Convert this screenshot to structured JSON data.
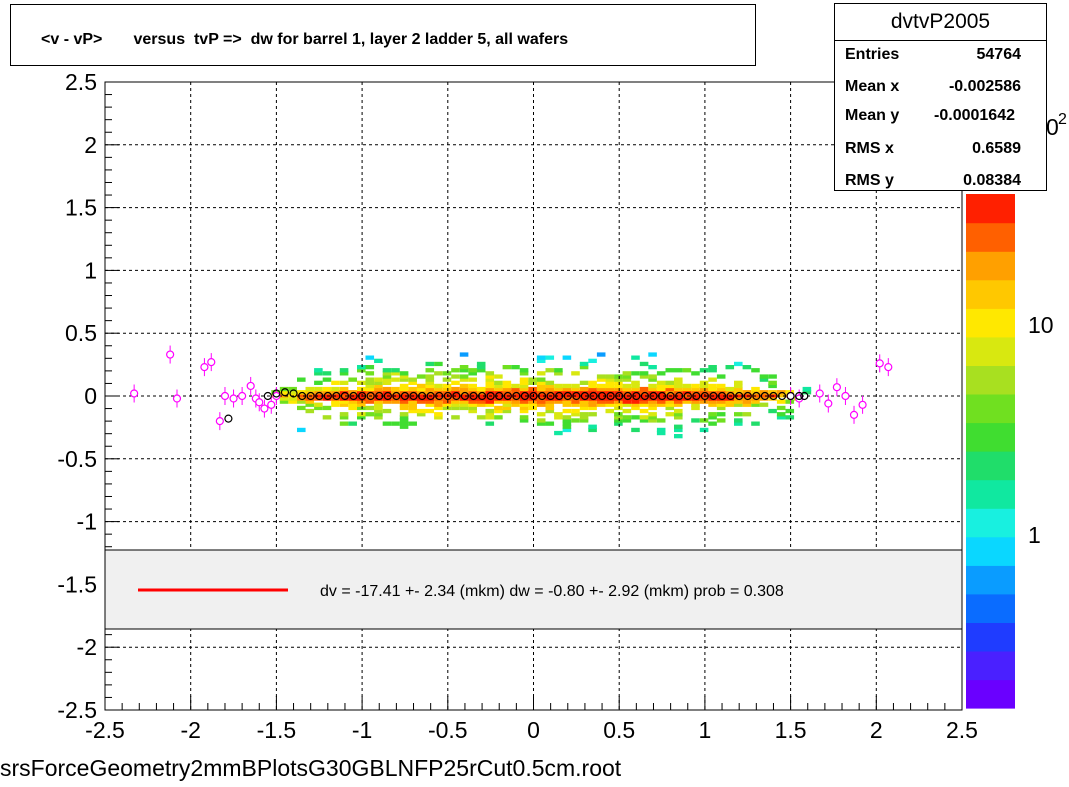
{
  "header": {
    "title": "<v - vP>       versus  tvP =>  dw for barrel 1, layer 2 ladder 5, all wafers"
  },
  "stats": {
    "name": "dvtvP2005",
    "rows": [
      {
        "label": "Entries",
        "value": "54764"
      },
      {
        "label": "Mean x",
        "value": "-0.002586"
      },
      {
        "label": "Mean y",
        "value": "-0.0001642"
      },
      {
        "label": "RMS x",
        "value": "0.6589"
      },
      {
        "label": "RMS y",
        "value": "0.08384"
      }
    ]
  },
  "fit_label": "dv =  -17.41 +-  2.34 (mkm) dw =   -0.80 +-  2.92 (mkm) prob = 0.308",
  "footer": "srsForceGeometry2mmBPlotsG30GBLNFP25rCut0.5cm.root",
  "chart_data": {
    "type": "heatmap",
    "title": "<v - vP>       versus  tvP =>  dw for barrel 1, layer 2 ladder 5, all wafers",
    "xlim": [
      -2.5,
      2.5
    ],
    "ylim": [
      -2.5,
      2.5
    ],
    "x_ticks": [
      "-2.5",
      "-2",
      "-1.5",
      "-1",
      "-0.5",
      "0",
      "0.5",
      "1",
      "1.5",
      "2",
      "2.5"
    ],
    "y_ticks": [
      "2.5",
      "2",
      "1.5",
      "1",
      "0.5",
      "0",
      "-0.5",
      "-1",
      "-1.5",
      "-2",
      "-2.5"
    ],
    "grid": true,
    "colorbar": {
      "scale": "log",
      "labels": [
        "10",
        "1"
      ],
      "partial_label": "2"
    },
    "band": {
      "x_range": [
        -1.5,
        1.5
      ],
      "y_half_width": 0.45,
      "core_y_half_width": 0.05
    },
    "profile_black": {
      "x": [
        -1.78,
        -1.55,
        -1.5,
        -1.45,
        -1.4,
        -1.35,
        -1.3,
        -1.25,
        -1.2,
        -1.15,
        -1.1,
        -1.05,
        -1.0,
        -0.95,
        -0.9,
        -0.85,
        -0.8,
        -0.75,
        -0.7,
        -0.65,
        -0.6,
        -0.55,
        -0.5,
        -0.45,
        -0.4,
        -0.35,
        -0.3,
        -0.25,
        -0.2,
        -0.15,
        -0.1,
        -0.05,
        0.0,
        0.05,
        0.1,
        0.15,
        0.2,
        0.25,
        0.3,
        0.35,
        0.4,
        0.45,
        0.5,
        0.55,
        0.6,
        0.65,
        0.7,
        0.75,
        0.8,
        0.85,
        0.9,
        0.95,
        1.0,
        1.05,
        1.1,
        1.15,
        1.2,
        1.25,
        1.3,
        1.35,
        1.4,
        1.45,
        1.5,
        1.55,
        1.58
      ],
      "y": [
        -0.18,
        0.0,
        0.02,
        0.03,
        0.02,
        0.0,
        0.0,
        0.0,
        0.0,
        0.0,
        0.0,
        0.0,
        0.0,
        0.0,
        0.0,
        0.0,
        0.0,
        0.0,
        0.0,
        0.0,
        0.0,
        0.0,
        0.0,
        0.0,
        0.0,
        0.0,
        0.0,
        0.0,
        0.0,
        0.0,
        0.0,
        0.0,
        0.0,
        0.0,
        0.0,
        0.0,
        0.0,
        0.0,
        0.0,
        0.0,
        0.0,
        0.0,
        0.0,
        0.0,
        0.0,
        0.0,
        0.0,
        0.0,
        0.0,
        0.0,
        0.0,
        0.0,
        0.0,
        0.0,
        0.0,
        0.0,
        0.0,
        0.0,
        0.0,
        0.0,
        0.0,
        0.0,
        0.0,
        0.0,
        0.0
      ]
    },
    "profile_magenta": {
      "x": [
        -2.33,
        -2.12,
        -2.08,
        -1.92,
        -1.88,
        -1.83,
        -1.8,
        -1.75,
        -1.7,
        -1.65,
        -1.62,
        -1.6,
        -1.57,
        -1.53,
        -1.5,
        1.5,
        1.55,
        1.67,
        1.72,
        1.77,
        1.82,
        1.87,
        1.92,
        2.02,
        2.07
      ],
      "y": [
        0.02,
        0.33,
        -0.02,
        0.23,
        0.27,
        -0.2,
        0.0,
        -0.02,
        0.0,
        0.08,
        -0.02,
        -0.05,
        -0.1,
        -0.07,
        0.0,
        0.0,
        -0.02,
        0.02,
        -0.06,
        0.07,
        0.0,
        -0.15,
        -0.07,
        0.26,
        0.23
      ]
    },
    "legend": {
      "entries": [
        {
          "name": "dv =  -17.41 +-  2.34 (mkm) dw =   -0.80 +-  2.92 (mkm) prob = 0.308",
          "color": "#ff0000"
        }
      ]
    }
  }
}
